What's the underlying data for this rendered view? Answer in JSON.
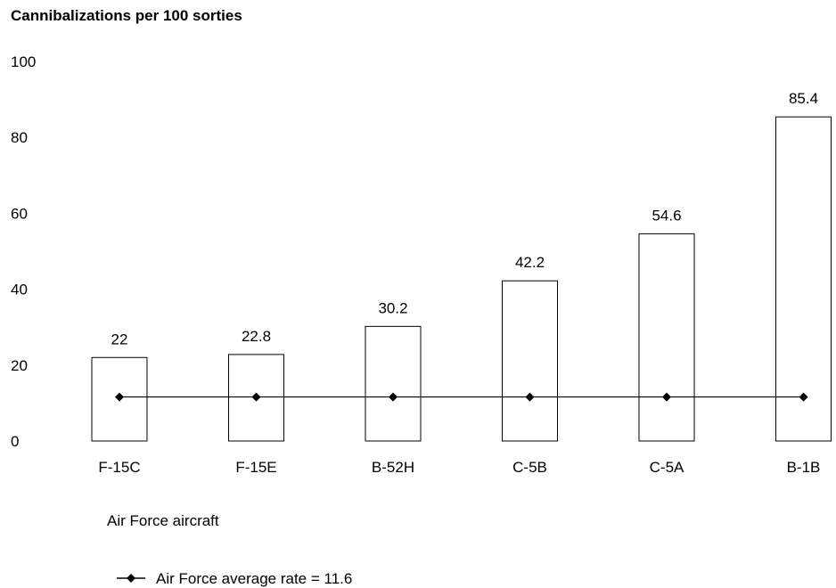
{
  "chart_data": {
    "type": "bar",
    "title": "Cannibalizations per 100 sorties",
    "xlabel": "Air Force aircraft",
    "ylabel": "",
    "ylim": [
      0,
      100
    ],
    "yticks": [
      "0",
      "20",
      "40",
      "60",
      "80",
      "100"
    ],
    "categories": [
      "F-15C",
      "F-15E",
      "B-52H",
      "C-5B",
      "C-5A",
      "B-1B"
    ],
    "values": [
      22,
      22.8,
      30.2,
      42.2,
      54.6,
      85.4
    ],
    "value_labels": [
      "22",
      "22.8",
      "30.2",
      "42.2",
      "54.6",
      "85.4"
    ],
    "bar_fill": "#ffffff",
    "bar_stroke": "#000000",
    "reference_line": {
      "name": "Air Force average rate = 11.6",
      "value": 11.6,
      "marker": "diamond",
      "color": "#000000"
    },
    "legend_position": "bottom-left",
    "grid": false
  }
}
